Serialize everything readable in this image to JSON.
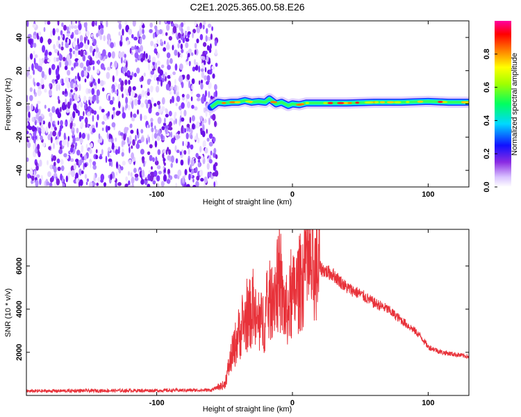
{
  "title": "C2E1.2025.365.00.58.E26",
  "chart_data": [
    {
      "type": "heatmap",
      "xlabel": "Height of straight line (km)",
      "ylabel": "Frequency (Hz)",
      "xlim": [
        -196,
        130
      ],
      "ylim": [
        -50,
        50
      ],
      "xticks": [
        -100,
        0,
        100
      ],
      "yticks": [
        -40,
        -20,
        0,
        20,
        40
      ],
      "colorbar": {
        "label": "Normalized spectral amplitude",
        "range": [
          0,
          1
        ],
        "ticks": [
          "0.0",
          "0.2",
          "0.4",
          "0.6",
          "0.8"
        ]
      },
      "noise_region_x": [
        -196,
        -60
      ],
      "carrier": {
        "x": [
          -60,
          -55,
          -50,
          -45,
          -40,
          -35,
          -30,
          -25,
          -20,
          -17,
          -12,
          -8,
          -3,
          0,
          5,
          10,
          20,
          40,
          60,
          80,
          100,
          115,
          130
        ],
        "freq_hz": [
          -2,
          1,
          0.5,
          1,
          1,
          2,
          1,
          1.5,
          1,
          3,
          0,
          1,
          -1,
          0,
          -0.5,
          0.5,
          0.5,
          0.5,
          1,
          1,
          1.5,
          1,
          1
        ]
      }
    },
    {
      "type": "line",
      "xlabel": "Height of straight line (km)",
      "ylabel": "SNR (10 * v/v)",
      "xlim": [
        -196,
        130
      ],
      "ylim": [
        0,
        7700
      ],
      "xticks": [
        -100,
        0,
        100
      ],
      "yticks": [
        2000,
        4000,
        6000
      ],
      "color": "#e8323a",
      "series": [
        {
          "x": [
            -196,
            -150,
            -100,
            -60,
            -50,
            -45,
            -40,
            -35,
            -30,
            -25,
            -20,
            -15,
            -10,
            -5,
            0,
            10,
            20,
            30,
            40,
            50,
            60,
            70,
            80,
            90,
            95,
            100,
            110,
            120,
            130
          ],
          "y": [
            200,
            220,
            230,
            250,
            500,
            1800,
            2800,
            3400,
            3900,
            3200,
            3600,
            4700,
            5200,
            3800,
            4500,
            5800,
            5900,
            5600,
            5000,
            4700,
            4300,
            4000,
            3500,
            3000,
            2700,
            2250,
            2000,
            1900,
            1800
          ]
        }
      ]
    }
  ]
}
